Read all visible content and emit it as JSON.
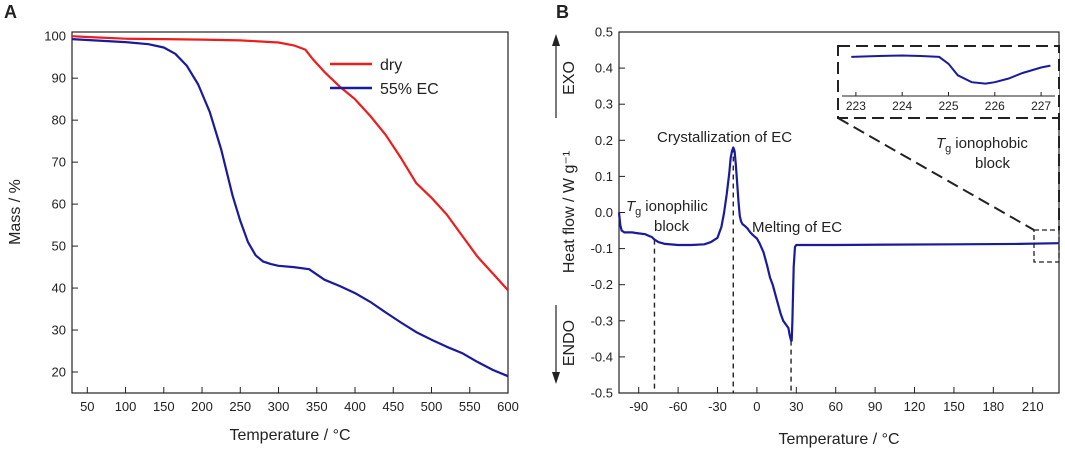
{
  "panels": {
    "a": "A",
    "b": "B"
  },
  "chart_data": [
    {
      "type": "line",
      "panel": "A",
      "xlabel": "Temperature  /  °C",
      "ylabel": "Mass  /  %",
      "xlim": [
        30,
        600
      ],
      "ylim": [
        15,
        101
      ],
      "xticks": [
        50,
        100,
        150,
        200,
        250,
        300,
        350,
        400,
        450,
        500,
        550,
        600
      ],
      "yticks": [
        20,
        30,
        40,
        50,
        60,
        70,
        80,
        90,
        100
      ],
      "legend": "top-right",
      "series": [
        {
          "name": "dry",
          "color": "#ee1c1c",
          "x": [
            30,
            50,
            100,
            150,
            200,
            250,
            300,
            320,
            335,
            345,
            360,
            380,
            400,
            420,
            440,
            460,
            480,
            500,
            520,
            540,
            560,
            580,
            600
          ],
          "y": [
            100,
            99.8,
            99.4,
            99.3,
            99.2,
            99,
            98.5,
            97.8,
            96.8,
            94.5,
            91.5,
            88,
            85,
            81,
            76.5,
            71,
            65,
            61.5,
            57.5,
            52.5,
            47.5,
            43.5,
            39.5
          ]
        },
        {
          "name": "55% EC",
          "color": "#1a1a9c",
          "x": [
            30,
            50,
            100,
            130,
            150,
            165,
            180,
            195,
            210,
            225,
            240,
            250,
            260,
            270,
            280,
            290,
            300,
            320,
            340,
            360,
            380,
            400,
            420,
            440,
            460,
            480,
            500,
            520,
            540,
            560,
            580,
            600
          ],
          "y": [
            99.3,
            99.1,
            98.6,
            98.1,
            97.3,
            95.8,
            93,
            88.5,
            82,
            73,
            62,
            56,
            51,
            47.8,
            46.3,
            45.7,
            45.3,
            45,
            44.5,
            42,
            40.5,
            38.8,
            36.7,
            34.2,
            31.8,
            29.5,
            27.7,
            26,
            24.5,
            22.4,
            20.5,
            19
          ]
        }
      ]
    },
    {
      "type": "line",
      "panel": "B",
      "xlabel": "Temperature  /  °C",
      "ylabel": "Heat flow  /  W g⁻¹",
      "xlim": [
        -105,
        230
      ],
      "ylim": [
        -0.5,
        0.5
      ],
      "xticks": [
        -90,
        -60,
        -30,
        0,
        30,
        60,
        90,
        120,
        150,
        180,
        210
      ],
      "yticks": [
        -0.5,
        -0.4,
        -0.3,
        -0.2,
        -0.1,
        0.0,
        0.1,
        0.2,
        0.3,
        0.4,
        0.5
      ],
      "ytick_labels": [
        "-0.5",
        "-0.4",
        "-0.3",
        "-0.2",
        "-0.1",
        "0.0",
        "0.1",
        "0.2",
        "0.3",
        "0.4",
        "0.5"
      ],
      "exo_label": "EXO",
      "endo_label": "ENDO",
      "series": [
        {
          "name": "55% EC",
          "color": "#1a1a9c",
          "x": [
            -105,
            -104,
            -103,
            -101,
            -98,
            -95,
            -90,
            -85,
            -82,
            -80,
            -78,
            -75,
            -70,
            -60,
            -50,
            -40,
            -35,
            -30,
            -27,
            -25,
            -23,
            -21,
            -20,
            -19,
            -18,
            -17,
            -16,
            -15,
            -14,
            -13,
            -12,
            -11,
            -10,
            -9,
            -7,
            -5,
            -3,
            0,
            2,
            5,
            8,
            10,
            12,
            15,
            18,
            20,
            22,
            24,
            25,
            26,
            26.5,
            27,
            28,
            29,
            30,
            40,
            60,
            100,
            150,
            200,
            230
          ],
          "y": [
            0.0,
            -0.035,
            -0.05,
            -0.055,
            -0.055,
            -0.055,
            -0.058,
            -0.06,
            -0.065,
            -0.068,
            -0.075,
            -0.082,
            -0.087,
            -0.09,
            -0.09,
            -0.088,
            -0.082,
            -0.07,
            -0.04,
            0.0,
            0.05,
            0.11,
            0.15,
            0.17,
            0.18,
            0.17,
            0.13,
            0.08,
            0.03,
            -0.01,
            -0.025,
            -0.032,
            -0.035,
            -0.038,
            -0.045,
            -0.055,
            -0.063,
            -0.072,
            -0.085,
            -0.11,
            -0.15,
            -0.18,
            -0.2,
            -0.24,
            -0.28,
            -0.3,
            -0.31,
            -0.32,
            -0.34,
            -0.355,
            -0.355,
            -0.3,
            -0.15,
            -0.095,
            -0.09,
            -0.09,
            -0.09,
            -0.089,
            -0.088,
            -0.087,
            -0.085
          ]
        }
      ],
      "dashed_markers": [
        -78,
        -18,
        26
      ],
      "annotations": {
        "tg_symbol": "T",
        "tg_sub": "g",
        "tg_philic_1": "ionophilic",
        "tg_philic_2": "block",
        "cryst": "Crystallization of EC",
        "melt": "Melting of EC",
        "tg_phobic_1": "ionophobic",
        "tg_phobic_2": "block"
      },
      "inset": {
        "xlim": [
          222.7,
          227.3
        ],
        "xticks": [
          223,
          224,
          225,
          226,
          227
        ],
        "x": [
          222.9,
          223.5,
          224.0,
          224.4,
          224.8,
          225.0,
          225.2,
          225.5,
          225.8,
          226.0,
          226.3,
          226.6,
          227.0,
          227.2
        ],
        "y": [
          0.85,
          0.87,
          0.88,
          0.87,
          0.85,
          0.7,
          0.45,
          0.3,
          0.27,
          0.3,
          0.38,
          0.5,
          0.62,
          0.66
        ]
      }
    }
  ]
}
